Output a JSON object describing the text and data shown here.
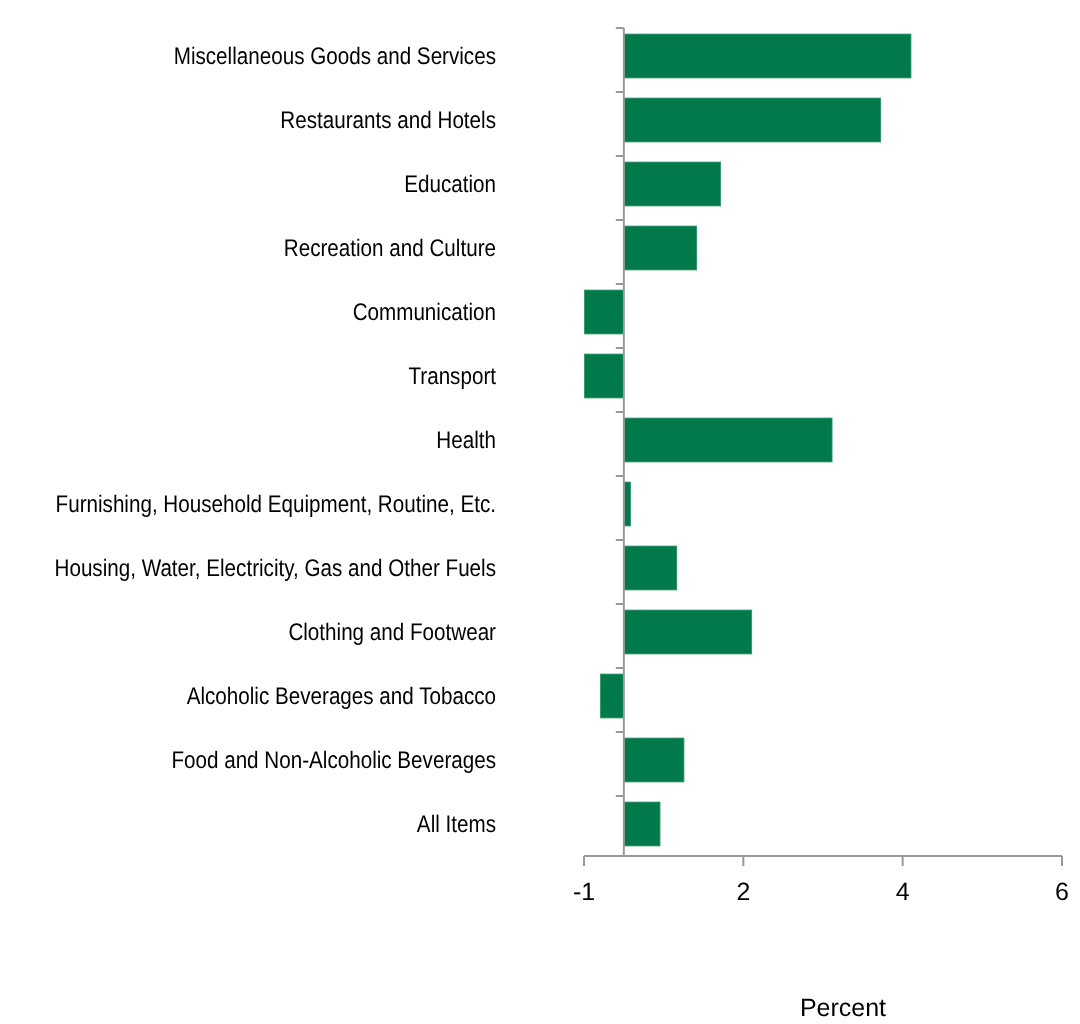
{
  "chart_data": {
    "type": "bar",
    "orientation": "horizontal",
    "xlabel": "Percent",
    "categories": [
      "Miscellaneous Goods and Services",
      "Restaurants and Hotels",
      "Education",
      "Recreation and Culture",
      "Communication",
      "Transport",
      "Health",
      "Furnishing, Household Equipment, Routine, Etc.",
      "Housing, Water, Electricity, Gas and Other Fuels",
      "Clothing and Footwear",
      "Alcoholic Beverages and Tobacco",
      "Food and Non-Alcoholic Beverages",
      "All Items"
    ],
    "values": [
      3.61,
      3.23,
      1.22,
      0.92,
      -0.5,
      -0.5,
      2.62,
      0.09,
      0.67,
      1.61,
      -0.3,
      0.76,
      0.46
    ],
    "color": "#007a4a",
    "xlim": [
      -0.5,
      5.5
    ],
    "xticks": [
      {
        "value": -0.5,
        "label": "-1"
      },
      {
        "value": 1.5,
        "label": "2"
      },
      {
        "value": 3.5,
        "label": "4"
      },
      {
        "value": 5.5,
        "label": "6"
      }
    ],
    "grid": false
  }
}
